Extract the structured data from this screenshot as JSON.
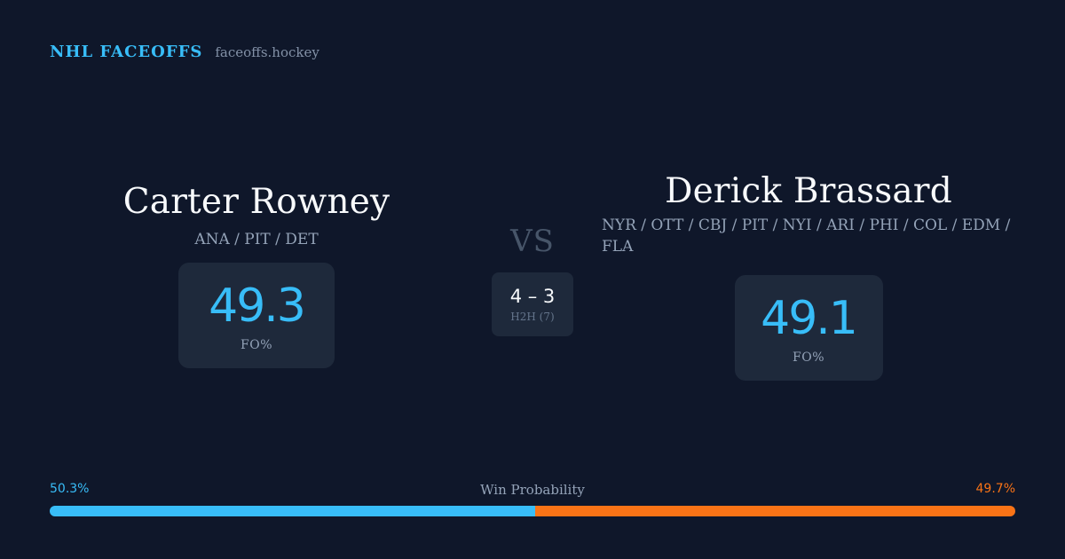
{
  "brand": {
    "name": "NHL FACEOFFS",
    "site": "faceoffs.hockey"
  },
  "colors": {
    "left": "#38bdf8",
    "right": "#f97316"
  },
  "left_player": {
    "name": "Carter Rowney",
    "teams": "ANA / PIT / DET",
    "fo_pct": "49.3",
    "fo_label": "FO%"
  },
  "right_player": {
    "name": "Derick Brassard",
    "teams": "NYR / OTT / CBJ / PIT / NYI / ARI / PHI / COL / EDM / FLA",
    "fo_pct": "49.1",
    "fo_label": "FO%"
  },
  "versus": "VS",
  "h2h": {
    "score": "4 – 3",
    "label": "H2H (7)"
  },
  "win_probability": {
    "title": "Win Probability",
    "left_text": "50.3%",
    "right_text": "49.7%",
    "left_value": 50.3,
    "right_value": 49.7
  }
}
